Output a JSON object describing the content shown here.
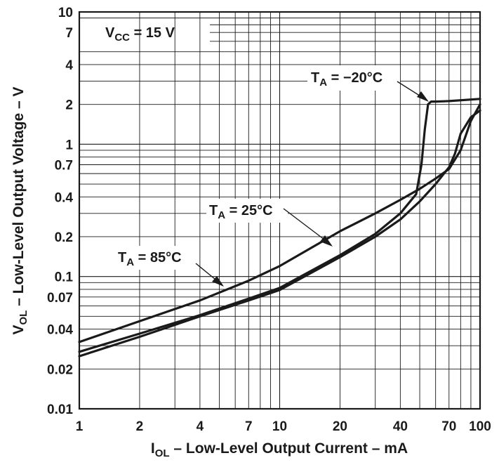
{
  "chart_data": {
    "type": "line",
    "x_scale": "log",
    "y_scale": "log",
    "xlim": [
      1,
      100
    ],
    "ylim": [
      0.01,
      10
    ],
    "grid": true,
    "xlabel": {
      "main": "I",
      "sub": "OL",
      "rest": " – Low-Level Output Current – mA"
    },
    "ylabel": {
      "main": "V",
      "sub": "OL",
      "rest": " – Low-Level Output Voltage – V"
    },
    "x_ticks": [
      1,
      2,
      4,
      7,
      10,
      20,
      40,
      70,
      100
    ],
    "x_tick_labels": [
      "1",
      "2",
      "4",
      "7",
      "10",
      "20",
      "40",
      "70",
      "100"
    ],
    "y_ticks": [
      0.01,
      0.02,
      0.04,
      0.07,
      0.1,
      0.2,
      0.4,
      0.7,
      1,
      2,
      4,
      7,
      10
    ],
    "y_tick_labels": [
      "0.01",
      "0.02",
      "0.04",
      "0.07",
      "0.1",
      "0.2",
      "0.4",
      "0.7",
      "1",
      "2",
      "4",
      "7",
      "10"
    ],
    "condition": {
      "main": "V",
      "sub": "CC",
      "rest": " = 15 V"
    },
    "series": [
      {
        "name": "T_A = -20°C",
        "label": {
          "main": "T",
          "sub": "A",
          "rest": " = −20°C"
        },
        "x": [
          1,
          2,
          4,
          7,
          10,
          20,
          30,
          40,
          48,
          51,
          53,
          55,
          57,
          60,
          70,
          100
        ],
        "y": [
          0.027,
          0.037,
          0.051,
          0.068,
          0.082,
          0.145,
          0.21,
          0.3,
          0.42,
          0.7,
          1.3,
          2.0,
          2.1,
          2.1,
          2.12,
          2.2
        ]
      },
      {
        "name": "T_A = 25°C",
        "label": {
          "main": "T",
          "sub": "A",
          "rest": " = 25°C"
        },
        "x": [
          1,
          2,
          4,
          7,
          10,
          20,
          30,
          40,
          50,
          60,
          70,
          75,
          80,
          90,
          100
        ],
        "y": [
          0.025,
          0.035,
          0.05,
          0.066,
          0.079,
          0.14,
          0.2,
          0.27,
          0.37,
          0.5,
          0.67,
          0.85,
          1.2,
          1.6,
          1.8
        ]
      },
      {
        "name": "T_A = 85°C",
        "label": {
          "main": "T",
          "sub": "A",
          "rest": " = 85°C"
        },
        "x": [
          1,
          2,
          4,
          7,
          10,
          20,
          30,
          40,
          50,
          60,
          70,
          80,
          90,
          100
        ],
        "y": [
          0.032,
          0.046,
          0.066,
          0.093,
          0.12,
          0.22,
          0.3,
          0.38,
          0.46,
          0.55,
          0.65,
          0.9,
          1.5,
          2.0
        ]
      }
    ]
  }
}
